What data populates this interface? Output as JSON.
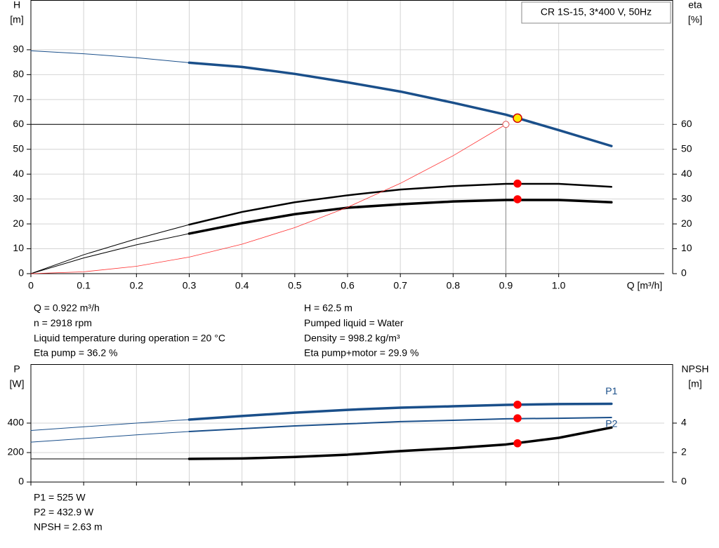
{
  "chart_data": [
    {
      "type": "line",
      "title": "CR 1S-15, 3*400 V, 50Hz",
      "ylabel": [
        "H",
        "[m]"
      ],
      "y2label": [
        "eta",
        "[%]"
      ],
      "xlabel": "Q [m³/h]",
      "x": [
        0,
        0.1,
        0.2,
        0.3,
        0.4,
        0.5,
        0.6,
        0.7,
        0.8,
        0.9,
        1.0,
        1.1
      ],
      "xlim": [
        0,
        1.2
      ],
      "xticks": [
        0,
        0.1,
        0.2,
        0.3,
        0.4,
        0.5,
        0.6,
        0.7,
        0.8,
        0.9,
        {
          "value": 1,
          "label": "1.0"
        }
      ],
      "x_tick_labels": true,
      "ylim": [
        0,
        110
      ],
      "yticks": [
        0,
        10,
        20,
        30,
        40,
        50,
        60,
        70,
        80,
        90
      ],
      "y2lim": [
        0,
        110
      ],
      "y2ticks": [
        0,
        10,
        20,
        30,
        40,
        50,
        60
      ],
      "grid": true,
      "series": [
        {
          "color": "#1a4f8a",
          "width": 1,
          "values": [
            89.6,
            88.4,
            86.8,
            84.8,
            null,
            null,
            null,
            null,
            null,
            null,
            null,
            null
          ]
        },
        {
          "color": "#1a4f8a",
          "width": 3.5,
          "values": [
            null,
            null,
            null,
            84.8,
            83.1,
            80.3,
            76.9,
            73.2,
            68.7,
            63.9,
            57.7,
            51.3
          ]
        },
        {
          "color": "#000000",
          "width": 1,
          "axis": "y2",
          "values": [
            0,
            7.6,
            14,
            19.7,
            null,
            null,
            null,
            null,
            null,
            null,
            null,
            null
          ]
        },
        {
          "color": "#000000",
          "width": 2.5,
          "axis": "y2",
          "values": [
            null,
            null,
            null,
            19.7,
            24.8,
            28.7,
            31.5,
            33.8,
            35.2,
            36.1,
            36.1,
            34.9
          ]
        },
        {
          "color": "#000000",
          "width": 1,
          "axis": "y2",
          "values": [
            0,
            6.3,
            11.6,
            16.1,
            null,
            null,
            null,
            null,
            null,
            null,
            null,
            null
          ]
        },
        {
          "color": "#000000",
          "width": 3.5,
          "axis": "y2",
          "values": [
            null,
            null,
            null,
            16.1,
            20.3,
            23.9,
            26.5,
            27.9,
            29,
            29.6,
            29.6,
            28.7
          ]
        },
        {
          "color": "#ff3030",
          "width": 0.8,
          "values": [
            0,
            0.74,
            2.96,
            6.67,
            11.85,
            18.5,
            26.7,
            36.3,
            47.4,
            60,
            null,
            null
          ]
        }
      ],
      "operating_point": {
        "x": 0.9,
        "y": 60,
        "color": "#e05050"
      },
      "markers": [
        {
          "x": 0.922,
          "y": 62.5,
          "color": "#ffe800",
          "stroke": "#d00000",
          "size": 6
        },
        {
          "x": 0.922,
          "y": 36.2,
          "color": "#ff0000",
          "axis": "y2",
          "size": 5
        },
        {
          "x": 0.922,
          "y": 29.9,
          "color": "#ff0000",
          "axis": "y2",
          "size": 5
        }
      ],
      "annotations": [
        "Q = 0.922 m³/h",
        "n = 2918 rpm",
        "Liquid temperature during operation = 20 °C",
        "Eta pump = 36.2 %",
        "H = 62.5 m",
        "Pumped liquid = Water",
        "Density = 998.2 kg/m³",
        "Eta pump+motor = 29.9 %"
      ]
    },
    {
      "type": "line",
      "ylabel": [
        "P",
        "[W]"
      ],
      "y2label": [
        "NPSH",
        "[m]"
      ],
      "x": [
        0,
        0.1,
        0.2,
        0.3,
        0.4,
        0.5,
        0.6,
        0.7,
        0.8,
        0.9,
        1.0,
        1.1
      ],
      "xlim": [
        0,
        1.2
      ],
      "xticks": [
        0,
        0.1,
        0.2,
        0.3,
        0.4,
        0.5,
        0.6,
        0.7,
        0.8,
        0.9,
        1
      ],
      "x_tick_labels": false,
      "ylim": [
        0,
        800
      ],
      "yticks": [
        0,
        200,
        400
      ],
      "y2lim": [
        0,
        8
      ],
      "y2ticks": [
        0,
        2,
        4
      ],
      "grid": true,
      "series": [
        {
          "color": "#1a4f8a",
          "width": 1,
          "values": [
            350,
            375,
            400,
            424,
            null,
            null,
            null,
            null,
            null,
            null,
            null,
            null
          ]
        },
        {
          "name": "P1",
          "label_pos": "above",
          "color": "#1a4f8a",
          "width": 3.5,
          "values": [
            null,
            null,
            null,
            424,
            448,
            471,
            490,
            505,
            514,
            524,
            529,
            531
          ]
        },
        {
          "color": "#1a4f8a",
          "width": 1,
          "values": [
            271,
            295,
            320,
            343,
            null,
            null,
            null,
            null,
            null,
            null,
            null,
            null
          ]
        },
        {
          "name": "P2",
          "label_pos": "below",
          "color": "#1a4f8a",
          "width": 2,
          "values": [
            null,
            null,
            null,
            343,
            362,
            381,
            395,
            410,
            419,
            429,
            433,
            438
          ]
        },
        {
          "color": "#000000",
          "width": 1,
          "axis": "y2",
          "values": [
            1.57,
            1.57,
            1.57,
            1.57,
            null,
            null,
            null,
            null,
            null,
            null,
            null,
            null
          ]
        },
        {
          "color": "#000000",
          "width": 3.5,
          "axis": "y2",
          "values": [
            null,
            null,
            null,
            1.57,
            1.6,
            1.7,
            1.86,
            2.1,
            2.3,
            2.55,
            3.0,
            3.7
          ]
        }
      ],
      "markers": [
        {
          "x": 0.922,
          "y": 525,
          "color": "#ff0000",
          "size": 5
        },
        {
          "x": 0.922,
          "y": 432.9,
          "color": "#ff0000",
          "size": 5
        },
        {
          "x": 0.922,
          "y": 2.63,
          "color": "#ff0000",
          "axis": "y2",
          "size": 5
        }
      ],
      "annotations": [
        "P1 = 525 W",
        "P2 = 432.9 W",
        "NPSH = 2.63 m"
      ]
    }
  ]
}
